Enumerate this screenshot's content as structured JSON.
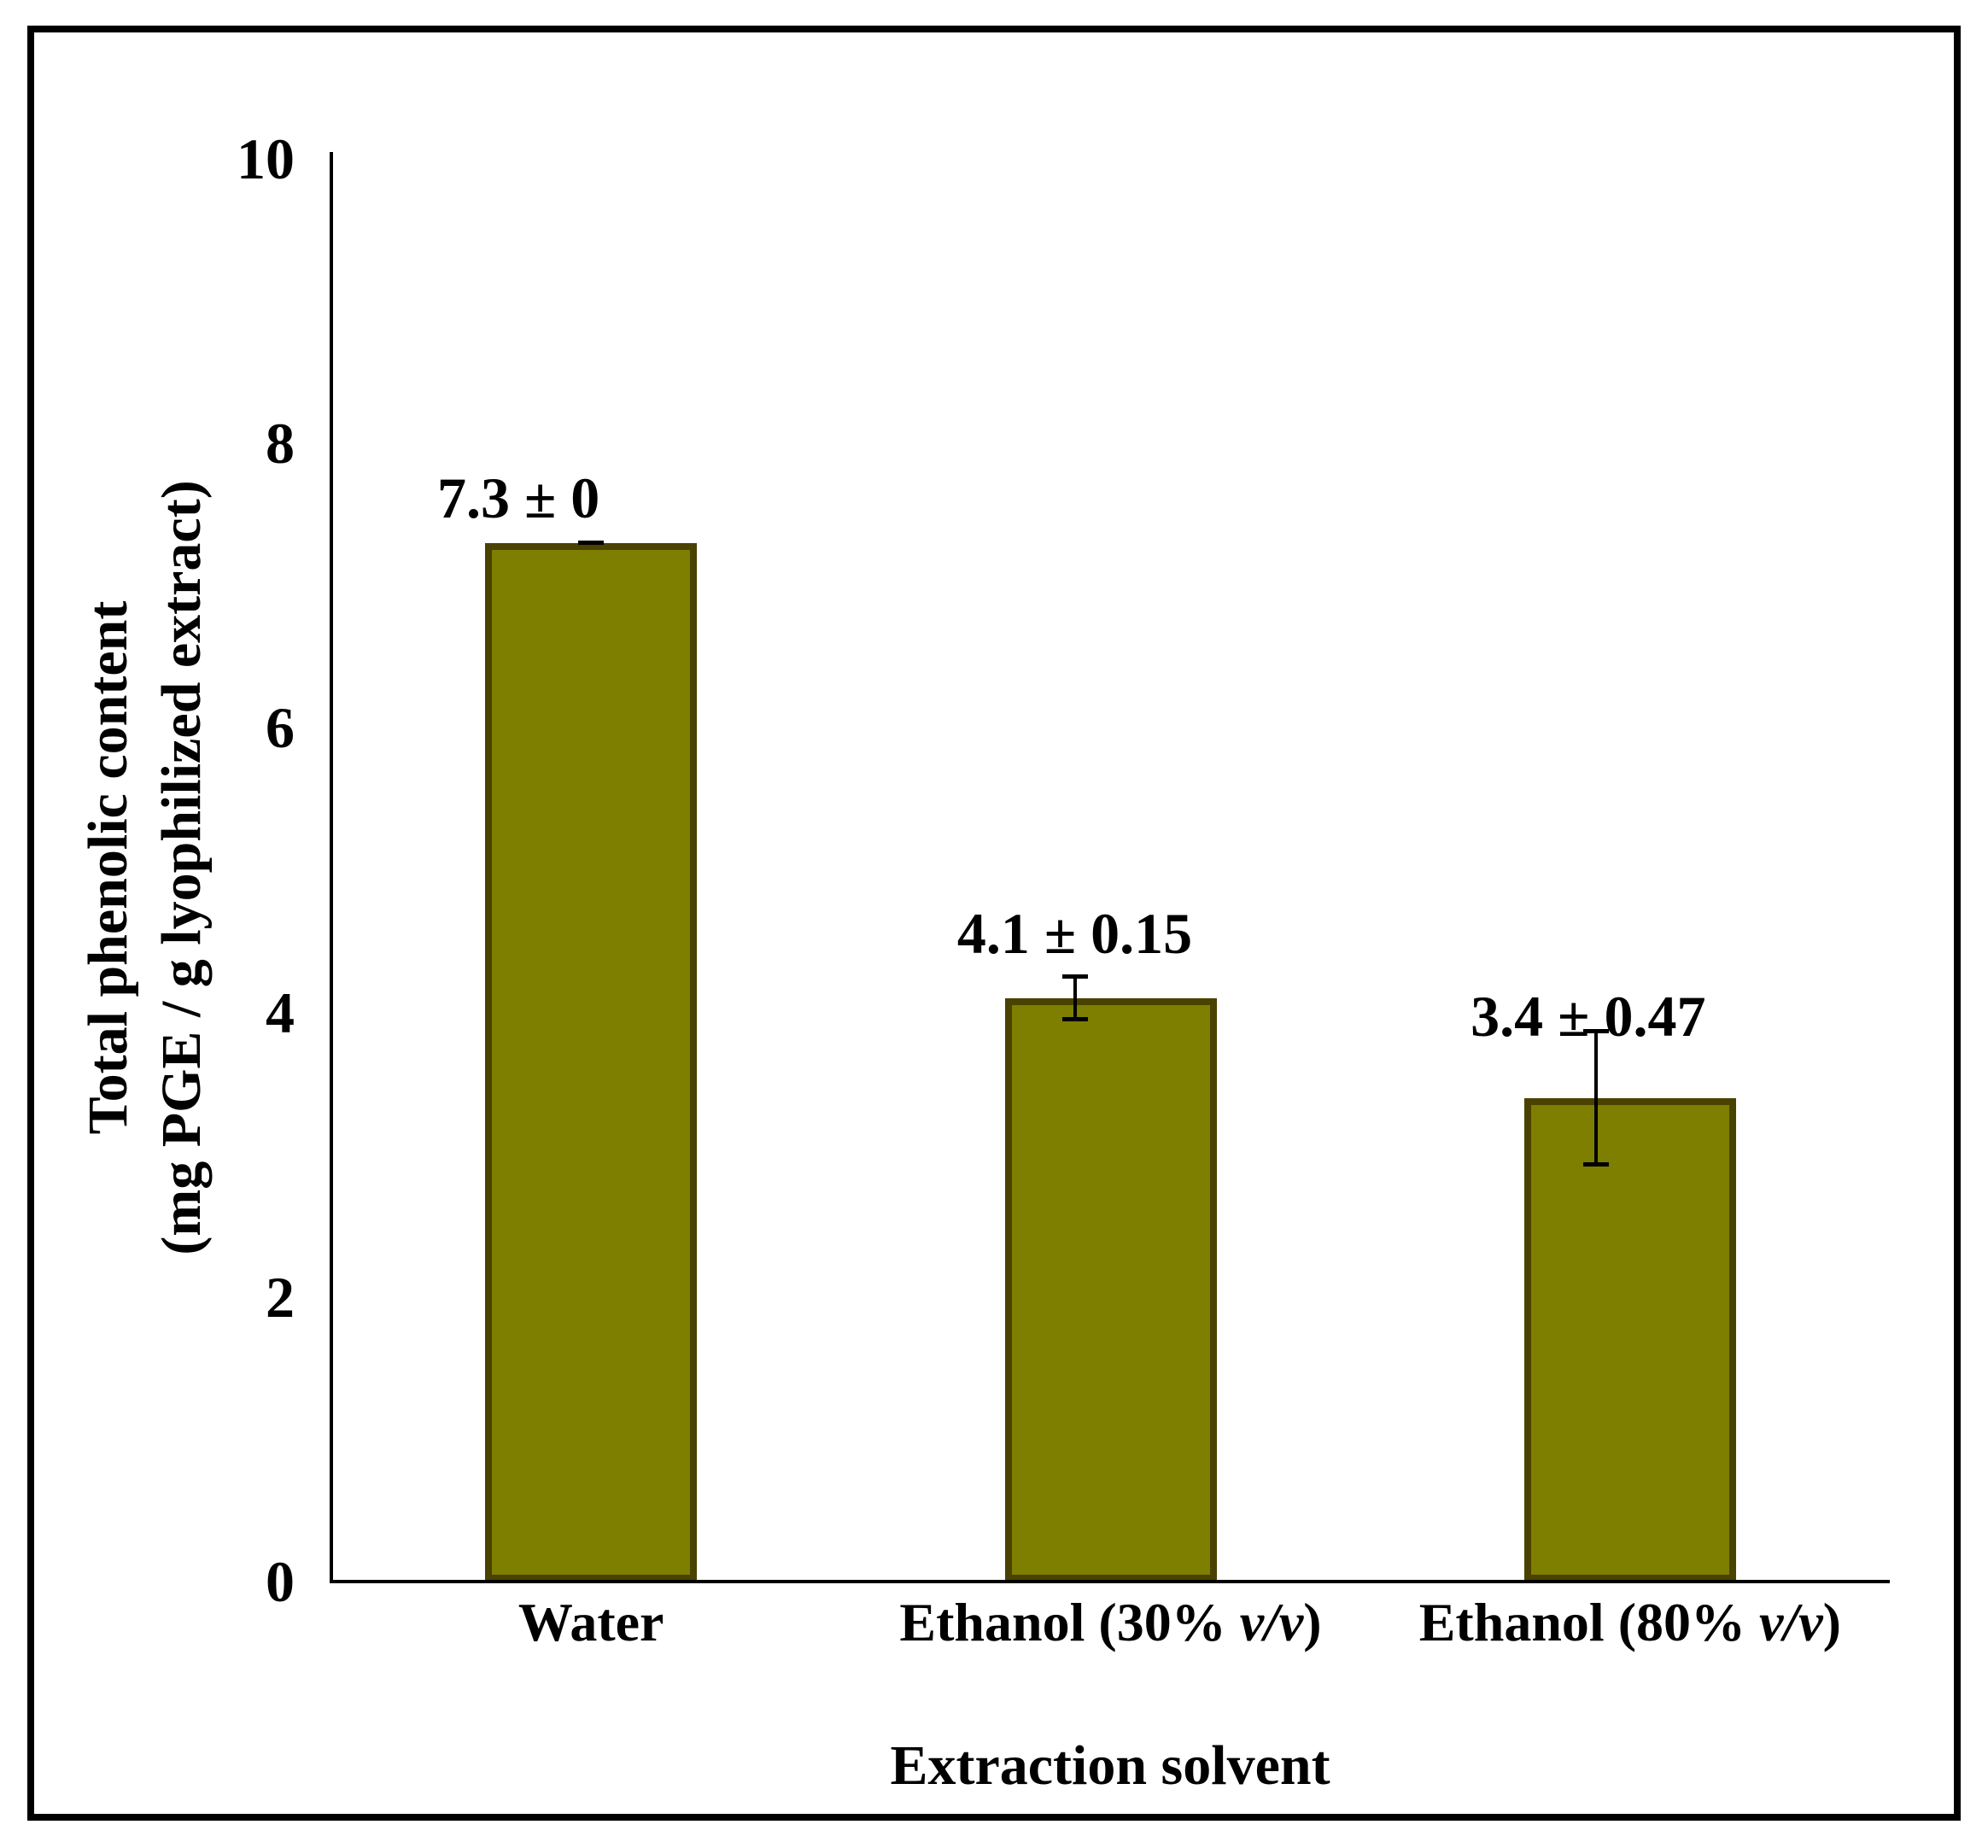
{
  "chart_data": {
    "type": "bar",
    "title": "",
    "categories": [
      {
        "plain": "Water",
        "prefix": "Water",
        "italic": "",
        "suffix": ""
      },
      {
        "plain": "Ethanol (30% v/v)",
        "prefix": "Ethanol (30% ",
        "italic": "v/v",
        "suffix": ")"
      },
      {
        "plain": "Ethanol (80% v/v)",
        "prefix": "Ethanol (80% ",
        "italic": "v/v",
        "suffix": ")"
      }
    ],
    "series": [
      {
        "name": "Total phenolic content",
        "values": [
          7.3,
          4.1,
          3.4
        ],
        "errors": [
          0,
          0.15,
          0.47
        ]
      }
    ],
    "value_labels": [
      "7.3 ± 0",
      "4.1 ± 0.15",
      "3.4 ± 0.47"
    ],
    "xlabel": "Extraction solvent",
    "ylabel": "Total phenolic content (mg PGE / g lyophilized extract)",
    "ylabel_lines": [
      "Total phenolic content",
      "(mg PGE / g lyophilized extract)"
    ],
    "ylim": [
      0,
      10
    ],
    "yticks": [
      0,
      2,
      4,
      6,
      8,
      10
    ],
    "grid": false,
    "legend_position": "none",
    "bar_fill_color": "#7E7E00",
    "bar_border_color": "#4A4200",
    "axis_color": "#000000",
    "text_color": "#000000",
    "background_color": "#FFFFFF",
    "error_bar_style": "caps-both-ends"
  }
}
